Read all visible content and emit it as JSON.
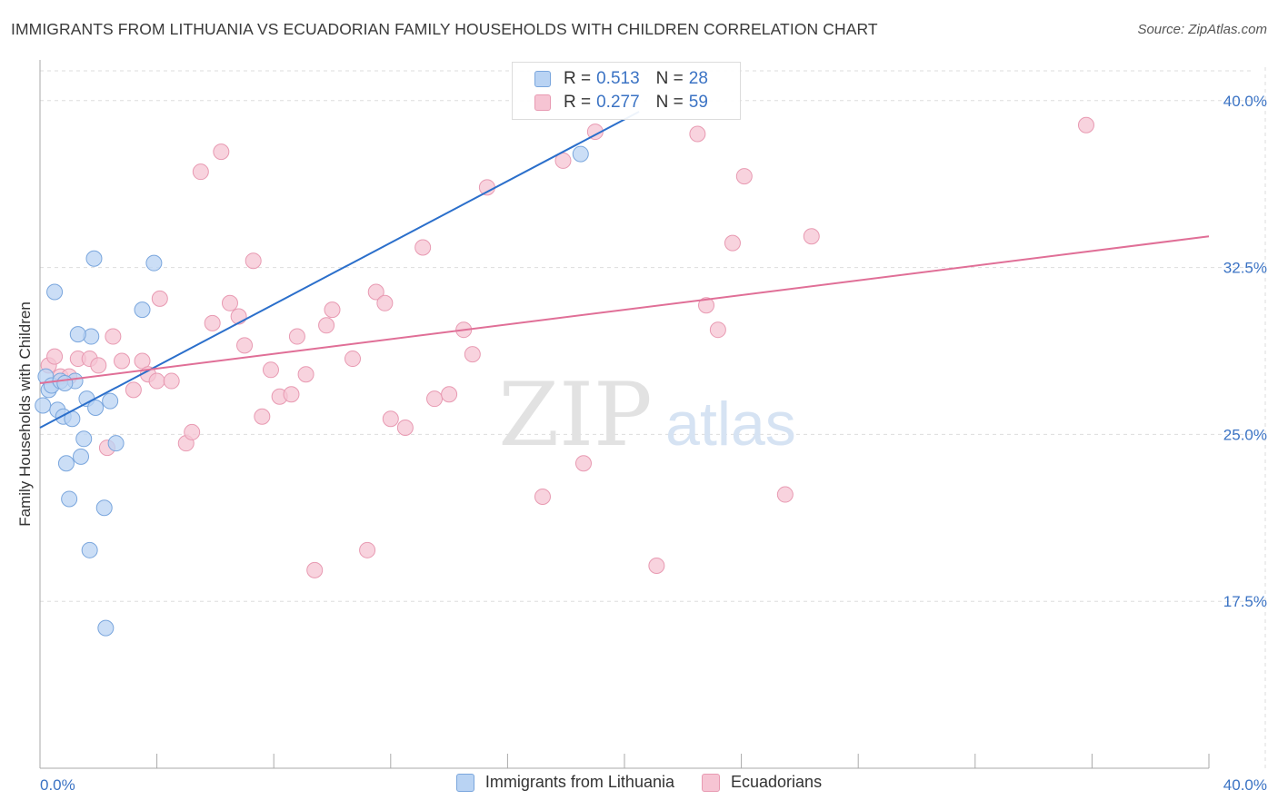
{
  "title": "IMMIGRANTS FROM LITHUANIA VS ECUADORIAN FAMILY HOUSEHOLDS WITH CHILDREN CORRELATION CHART",
  "source": "Source: ZipAtlas.com",
  "watermark": {
    "zip": "ZIP",
    "atlas": "atlas"
  },
  "colors": {
    "blue_fill": "#b9d3f3",
    "blue_stroke": "#7aa6dd",
    "blue_line": "#2b6fcb",
    "pink_fill": "#f6c4d3",
    "pink_stroke": "#e89ab2",
    "pink_line": "#e06f97",
    "axis_text": "#3b73c4",
    "grid": "#dddddd"
  },
  "legend": {
    "series1": {
      "r_label": "R =",
      "r_value": "0.513",
      "n_label": "N =",
      "n_value": "28"
    },
    "series2": {
      "r_label": "R =",
      "r_value": "0.277",
      "n_label": "N =",
      "n_value": "59"
    }
  },
  "chart_data": {
    "type": "scatter",
    "title": "IMMIGRANTS FROM LITHUANIA VS ECUADORIAN FAMILY HOUSEHOLDS WITH CHILDREN CORRELATION CHART",
    "xlabel": "",
    "ylabel": "Family Households with Children",
    "xlim": [
      0,
      40
    ],
    "ylim": [
      10,
      41.5
    ],
    "x_tick_labels": [
      "0.0%",
      "40.0%"
    ],
    "y_ticks": [
      17.5,
      25.0,
      32.5,
      40.0
    ],
    "y_tick_labels": [
      "17.5%",
      "25.0%",
      "32.5%",
      "40.0%"
    ],
    "grid": true,
    "legend_position": "top-center",
    "series": [
      {
        "name": "Immigrants from Lithuania",
        "color": "blue",
        "trend": {
          "x": [
            0.0,
            20.5
          ],
          "y": [
            25.3,
            39.5
          ]
        },
        "points": [
          [
            0.1,
            26.3
          ],
          [
            0.2,
            27.6
          ],
          [
            0.3,
            27.0
          ],
          [
            0.4,
            27.2
          ],
          [
            0.5,
            31.4
          ],
          [
            0.6,
            26.1
          ],
          [
            0.7,
            27.4
          ],
          [
            0.8,
            25.8
          ],
          [
            0.9,
            23.7
          ],
          [
            1.0,
            22.1
          ],
          [
            1.1,
            25.7
          ],
          [
            1.2,
            27.4
          ],
          [
            1.4,
            24.0
          ],
          [
            1.5,
            24.8
          ],
          [
            1.6,
            26.6
          ],
          [
            1.7,
            19.8
          ],
          [
            1.75,
            29.4
          ],
          [
            1.85,
            32.9
          ],
          [
            1.9,
            26.2
          ],
          [
            2.2,
            21.7
          ],
          [
            2.25,
            16.3
          ],
          [
            2.4,
            26.5
          ],
          [
            2.6,
            24.6
          ],
          [
            3.5,
            30.6
          ],
          [
            3.9,
            32.7
          ],
          [
            18.5,
            37.6
          ],
          [
            1.3,
            29.5
          ],
          [
            0.85,
            27.3
          ]
        ]
      },
      {
        "name": "Ecuadorians",
        "color": "pink",
        "trend": {
          "x": [
            0.0,
            40.0
          ],
          "y": [
            27.3,
            33.9
          ]
        },
        "points": [
          [
            0.3,
            28.1
          ],
          [
            0.5,
            28.5
          ],
          [
            0.7,
            27.6
          ],
          [
            1.0,
            27.6
          ],
          [
            1.3,
            28.4
          ],
          [
            1.7,
            28.4
          ],
          [
            2.0,
            28.1
          ],
          [
            2.3,
            24.4
          ],
          [
            2.5,
            29.4
          ],
          [
            2.8,
            28.3
          ],
          [
            3.2,
            27.0
          ],
          [
            3.5,
            28.3
          ],
          [
            3.7,
            27.7
          ],
          [
            4.0,
            27.4
          ],
          [
            4.1,
            31.1
          ],
          [
            4.5,
            27.4
          ],
          [
            5.0,
            24.6
          ],
          [
            5.2,
            25.1
          ],
          [
            5.5,
            36.8
          ],
          [
            5.9,
            30.0
          ],
          [
            6.2,
            37.7
          ],
          [
            6.5,
            30.9
          ],
          [
            6.8,
            30.3
          ],
          [
            7.0,
            29.0
          ],
          [
            7.3,
            32.8
          ],
          [
            7.6,
            25.8
          ],
          [
            7.9,
            27.9
          ],
          [
            8.2,
            26.7
          ],
          [
            8.6,
            26.8
          ],
          [
            8.8,
            29.4
          ],
          [
            9.1,
            27.7
          ],
          [
            9.4,
            18.9
          ],
          [
            9.8,
            29.9
          ],
          [
            10.0,
            30.6
          ],
          [
            10.7,
            28.4
          ],
          [
            11.2,
            19.8
          ],
          [
            11.5,
            31.4
          ],
          [
            11.8,
            30.9
          ],
          [
            12.0,
            25.7
          ],
          [
            12.5,
            25.3
          ],
          [
            13.1,
            33.4
          ],
          [
            13.5,
            26.6
          ],
          [
            14.0,
            26.8
          ],
          [
            14.5,
            29.7
          ],
          [
            14.8,
            28.6
          ],
          [
            15.3,
            36.1
          ],
          [
            17.2,
            22.2
          ],
          [
            17.9,
            37.3
          ],
          [
            18.6,
            23.7
          ],
          [
            19.0,
            38.6
          ],
          [
            21.1,
            19.1
          ],
          [
            22.5,
            38.5
          ],
          [
            22.8,
            30.8
          ],
          [
            23.2,
            29.7
          ],
          [
            23.7,
            33.6
          ],
          [
            24.1,
            36.6
          ],
          [
            25.5,
            22.3
          ],
          [
            26.4,
            33.9
          ],
          [
            35.8,
            38.9
          ]
        ]
      }
    ]
  },
  "bottom_legend": {
    "item1": "Immigrants from Lithuania",
    "item2": "Ecuadorians"
  }
}
